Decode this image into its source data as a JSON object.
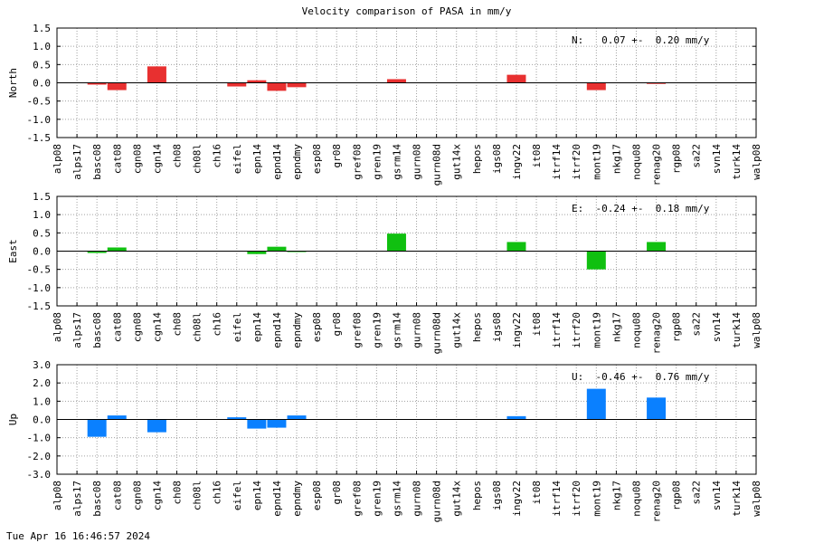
{
  "timestamp": "Tue Apr 16 16:46:57 2024",
  "chart_data": [
    {
      "type": "bar",
      "title": "Velocity comparison of PASA in mm/y",
      "ylabel": "North",
      "ylim": [
        -1.5,
        1.5
      ],
      "yticks": [
        -1.5,
        -1.0,
        -0.5,
        0.0,
        0.5,
        1.0,
        1.5
      ],
      "ytick_labels": [
        "-1.5",
        "-1.0",
        "-0.5",
        "0.0",
        "0.5",
        "1.0",
        "1.5"
      ],
      "stat_text": "N:   0.07 +-  0.20 mm/y",
      "color": "#e83030",
      "grid": true,
      "categories": [
        "alp08",
        "alps17",
        "basc08",
        "cat08",
        "cgn08",
        "cgn14",
        "ch08",
        "ch08l",
        "ch16",
        "eifel",
        "epn14",
        "epnd14",
        "epndmy",
        "esp08",
        "gr08",
        "gref08",
        "gren19",
        "gsrm14",
        "gurn08",
        "gurn08d",
        "gut14x",
        "hepos",
        "igs08",
        "ingv22",
        "it08",
        "itrf14",
        "itrf20",
        "mont19",
        "nkg17",
        "noqu08",
        "renag20",
        "rgp08",
        "sa22",
        "svn14",
        "turk14",
        "walp08"
      ],
      "values": [
        null,
        null,
        -0.05,
        -0.2,
        null,
        0.45,
        null,
        null,
        null,
        -0.1,
        0.07,
        -0.22,
        -0.12,
        null,
        null,
        null,
        null,
        0.1,
        null,
        null,
        null,
        null,
        null,
        0.22,
        null,
        null,
        null,
        -0.2,
        null,
        null,
        -0.03,
        null,
        null,
        null,
        null,
        null
      ]
    },
    {
      "type": "bar",
      "ylabel": "East",
      "ylim": [
        -1.5,
        1.5
      ],
      "yticks": [
        -1.5,
        -1.0,
        -0.5,
        0.0,
        0.5,
        1.0,
        1.5
      ],
      "ytick_labels": [
        "-1.5",
        "-1.0",
        "-0.5",
        "0.0",
        "0.5",
        "1.0",
        "1.5"
      ],
      "stat_text": "E:  -0.24 +-  0.18 mm/y",
      "color": "#10c010",
      "grid": true,
      "categories": [
        "alp08",
        "alps17",
        "basc08",
        "cat08",
        "cgn08",
        "cgn14",
        "ch08",
        "ch08l",
        "ch16",
        "eifel",
        "epn14",
        "epnd14",
        "epndmy",
        "esp08",
        "gr08",
        "gref08",
        "gren19",
        "gsrm14",
        "gurn08",
        "gurn08d",
        "gut14x",
        "hepos",
        "igs08",
        "ingv22",
        "it08",
        "itrf14",
        "itrf20",
        "mont19",
        "nkg17",
        "noqu08",
        "renag20",
        "rgp08",
        "sa22",
        "svn14",
        "turk14",
        "walp08"
      ],
      "values": [
        null,
        null,
        -0.05,
        0.1,
        null,
        null,
        null,
        null,
        null,
        null,
        -0.08,
        0.12,
        -0.02,
        null,
        null,
        null,
        null,
        0.48,
        null,
        null,
        null,
        null,
        null,
        0.25,
        null,
        null,
        null,
        -0.5,
        null,
        null,
        0.25,
        null,
        null,
        null,
        null,
        null
      ]
    },
    {
      "type": "bar",
      "ylabel": "Up",
      "ylim": [
        -3.0,
        3.0
      ],
      "yticks": [
        -3.0,
        -2.0,
        -1.0,
        0.0,
        1.0,
        2.0,
        3.0
      ],
      "ytick_labels": [
        "-3.0",
        "-2.0",
        "-1.0",
        "0.0",
        "1.0",
        "2.0",
        "3.0"
      ],
      "stat_text": "U:  -0.46 +-  0.76 mm/y",
      "color": "#0a80ff",
      "grid": true,
      "categories": [
        "alp08",
        "alps17",
        "basc08",
        "cat08",
        "cgn08",
        "cgn14",
        "ch08",
        "ch08l",
        "ch16",
        "eifel",
        "epn14",
        "epnd14",
        "epndmy",
        "esp08",
        "gr08",
        "gref08",
        "gren19",
        "gsrm14",
        "gurn08",
        "gurn08d",
        "gut14x",
        "hepos",
        "igs08",
        "ingv22",
        "it08",
        "itrf14",
        "itrf20",
        "mont19",
        "nkg17",
        "noqu08",
        "renag20",
        "rgp08",
        "sa22",
        "svn14",
        "turk14",
        "walp08"
      ],
      "values": [
        null,
        null,
        -0.95,
        0.22,
        null,
        -0.7,
        null,
        null,
        null,
        0.12,
        -0.5,
        -0.45,
        0.22,
        null,
        null,
        null,
        null,
        null,
        null,
        null,
        null,
        null,
        null,
        0.18,
        null,
        null,
        null,
        1.68,
        null,
        null,
        1.2,
        null,
        null,
        null,
        null,
        null
      ]
    }
  ]
}
